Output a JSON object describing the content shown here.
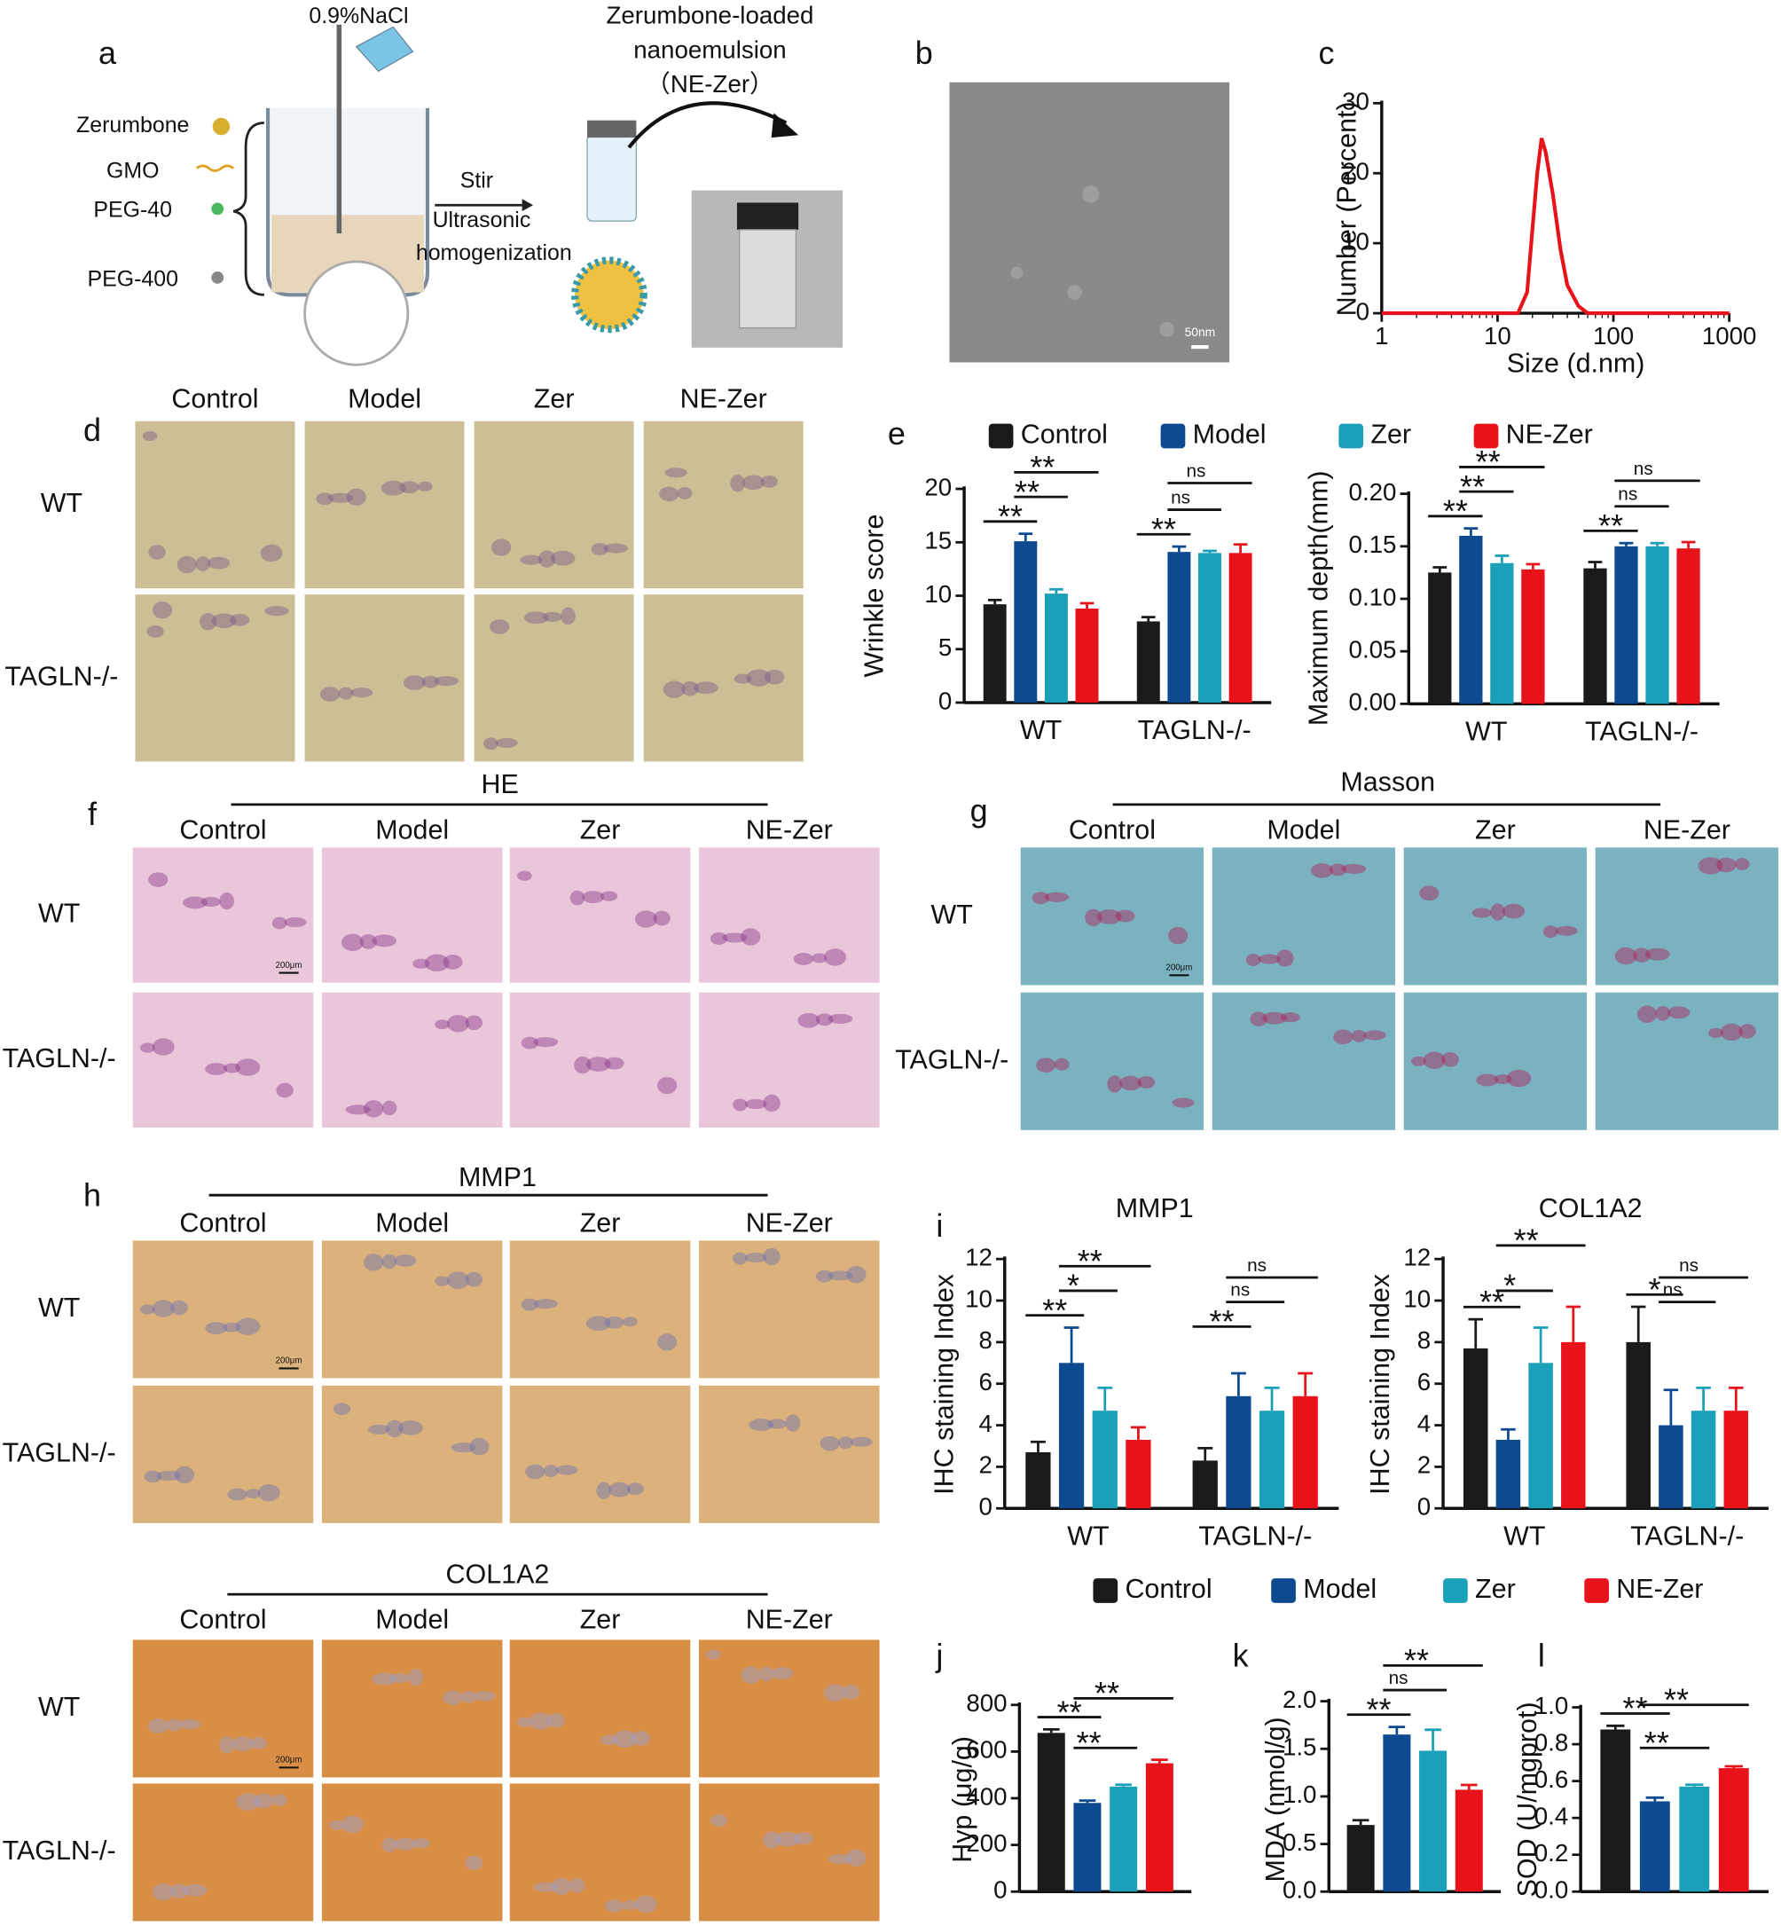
{
  "schematic": {
    "label": "a",
    "nacl": "0.9%NaCl",
    "product_title": [
      "Zerumbone-loaded",
      "nanoemulsion",
      "（NE-Zer）"
    ],
    "ingredients": [
      "Zerumbone",
      "GMO",
      "PEG-40",
      "PEG-400"
    ],
    "steps": [
      "Stir",
      "Ultrasonic",
      "homogenization"
    ]
  },
  "tem": {
    "label": "b",
    "scale_bar": "50nm"
  },
  "image_panels": [
    {
      "label": "d",
      "columns": [
        "Control",
        "Model",
        "Zer",
        "NE-Zer"
      ],
      "rows": [
        "WT",
        "TAGLN-/-"
      ]
    },
    {
      "label": "f",
      "title": "HE",
      "columns": [
        "Control",
        "Model",
        "Zer",
        "NE-Zer"
      ],
      "rows": [
        "WT",
        "TAGLN-/-"
      ],
      "scale_bar": "200μm"
    },
    {
      "label": "g",
      "title": "Masson",
      "columns": [
        "Control",
        "Model",
        "Zer",
        "NE-Zer"
      ],
      "rows": [
        "WT",
        "TAGLN-/-"
      ],
      "scale_bar": "200μm"
    },
    {
      "label": "h",
      "title": "MMP1",
      "columns": [
        "Control",
        "Model",
        "Zer",
        "NE-Zer"
      ],
      "rows": [
        "WT",
        "TAGLN-/-"
      ],
      "scale_bar": "200μm"
    },
    {
      "title": "COL1A2",
      "columns": [
        "Control",
        "Model",
        "Zer",
        "NE-Zer"
      ],
      "rows": [
        "WT",
        "TAGLN-/-"
      ],
      "scale_bar": "200μm"
    }
  ],
  "chart_data": [
    {
      "type": "line",
      "panel": "c",
      "xlabel": "Size (d.nm)",
      "ylabel": "Number (Percent)",
      "log_x": true,
      "x": [
        1,
        15,
        18,
        20,
        22,
        24,
        26,
        30,
        35,
        40,
        50,
        60,
        100,
        1000
      ],
      "series": [
        {
          "color": "#e8121a",
          "values": [
            0,
            0,
            3,
            12,
            20,
            25,
            23,
            17,
            9,
            4,
            1,
            0,
            0,
            0
          ]
        }
      ],
      "xlim": [
        1,
        1000
      ],
      "xticks": [
        1,
        10,
        100,
        1000
      ],
      "ylim": [
        0,
        30
      ],
      "yticks": [
        0,
        10,
        20,
        30
      ]
    },
    {
      "type": "bar",
      "panel": "e",
      "ylabel": "Wrinkle score",
      "legend": "top",
      "categories": [
        "WT",
        "TAGLN-/-"
      ],
      "series": [
        {
          "name": "Control",
          "color": "#1a1a1a",
          "values": [
            9.2,
            7.6
          ],
          "errors": [
            0.4,
            0.4
          ]
        },
        {
          "name": "Model",
          "color": "#0d4a8f",
          "values": [
            15.1,
            14.1
          ],
          "errors": [
            0.7,
            0.5
          ]
        },
        {
          "name": "Zer",
          "color": "#1aa0b8",
          "values": [
            10.2,
            14.0
          ],
          "errors": [
            0.4,
            0.2
          ]
        },
        {
          "name": "NE-Zer",
          "color": "#e8121a",
          "values": [
            8.8,
            14.0
          ],
          "errors": [
            0.5,
            0.8
          ]
        }
      ],
      "ylim": [
        0,
        20
      ],
      "yticks": [
        0,
        5,
        10,
        15,
        20
      ],
      "significance": [
        {
          "label": "**",
          "group": 0,
          "from": 0,
          "to": 1
        },
        {
          "label": "**",
          "group": 0,
          "from": 1,
          "to": 2
        },
        {
          "label": "**",
          "group": 0,
          "from": 1,
          "to": 3
        },
        {
          "label": "**",
          "group": 1,
          "from": 0,
          "to": 1
        },
        {
          "label": "ns",
          "group": 1,
          "from": 1,
          "to": 2
        },
        {
          "label": "ns",
          "group": 1,
          "from": 1,
          "to": 3
        }
      ]
    },
    {
      "type": "bar",
      "ylabel": "Maximum depth(mm)",
      "categories": [
        "WT",
        "TAGLN-/-"
      ],
      "series": [
        {
          "color": "#1a1a1a",
          "values": [
            0.125,
            0.129
          ],
          "errors": [
            0.005,
            0.006
          ]
        },
        {
          "color": "#0d4a8f",
          "values": [
            0.16,
            0.15
          ],
          "errors": [
            0.007,
            0.003
          ]
        },
        {
          "color": "#1aa0b8",
          "values": [
            0.134,
            0.15
          ],
          "errors": [
            0.007,
            0.003
          ]
        },
        {
          "color": "#e8121a",
          "values": [
            0.128,
            0.148
          ],
          "errors": [
            0.005,
            0.006
          ]
        }
      ],
      "ylim": [
        0,
        0.2
      ],
      "yticks": [
        {
          "value": 0,
          "label": "0.00"
        },
        {
          "value": 0.05,
          "label": "0.05"
        },
        {
          "value": 0.1,
          "label": "0.10"
        },
        {
          "value": 0.15,
          "label": "0.15"
        },
        {
          "value": 0.2,
          "label": "0.20"
        }
      ],
      "significance": [
        {
          "label": "**",
          "group": 0,
          "from": 0,
          "to": 1
        },
        {
          "label": "**",
          "group": 0,
          "from": 1,
          "to": 2
        },
        {
          "label": "**",
          "group": 0,
          "from": 1,
          "to": 3
        },
        {
          "label": "**",
          "group": 1,
          "from": 0,
          "to": 1
        },
        {
          "label": "ns",
          "group": 1,
          "from": 1,
          "to": 2
        },
        {
          "label": "ns",
          "group": 1,
          "from": 1,
          "to": 3
        }
      ]
    },
    {
      "type": "bar",
      "panel": "i",
      "title": "MMP1",
      "ylabel": "IHC staining Index",
      "categories": [
        "WT",
        "TAGLN-/-"
      ],
      "series": [
        {
          "color": "#1a1a1a",
          "values": [
            2.7,
            2.3
          ],
          "errors": [
            0.5,
            0.6
          ]
        },
        {
          "color": "#0d4a8f",
          "values": [
            7.0,
            5.4
          ],
          "errors": [
            1.7,
            1.1
          ]
        },
        {
          "color": "#1aa0b8",
          "values": [
            4.7,
            4.7
          ],
          "errors": [
            1.1,
            1.1
          ]
        },
        {
          "color": "#e8121a",
          "values": [
            3.3,
            5.4
          ],
          "errors": [
            0.6,
            1.1
          ]
        }
      ],
      "ylim": [
        0,
        12
      ],
      "yticks": [
        0,
        2,
        4,
        6,
        8,
        10,
        12
      ],
      "significance": [
        {
          "label": "**",
          "group": 0,
          "from": 0,
          "to": 1
        },
        {
          "label": "*",
          "group": 0,
          "from": 1,
          "to": 2
        },
        {
          "label": "**",
          "group": 0,
          "from": 1,
          "to": 3
        },
        {
          "label": "**",
          "group": 1,
          "from": 0,
          "to": 1
        },
        {
          "label": "ns",
          "group": 1,
          "from": 1,
          "to": 2
        },
        {
          "label": "ns",
          "group": 1,
          "from": 1,
          "to": 3
        }
      ]
    },
    {
      "type": "bar",
      "title": "COL1A2",
      "ylabel": "IHC staining Index",
      "categories": [
        "WT",
        "TAGLN-/-"
      ],
      "series": [
        {
          "color": "#1a1a1a",
          "values": [
            7.7,
            8.0
          ],
          "errors": [
            1.4,
            1.7
          ]
        },
        {
          "color": "#0d4a8f",
          "values": [
            3.3,
            4.0
          ],
          "errors": [
            0.5,
            1.7
          ]
        },
        {
          "color": "#1aa0b8",
          "values": [
            7.0,
            4.7
          ],
          "errors": [
            1.7,
            1.1
          ]
        },
        {
          "color": "#e8121a",
          "values": [
            8.0,
            4.7
          ],
          "errors": [
            1.7,
            1.1
          ]
        }
      ],
      "ylim": [
        0,
        12
      ],
      "yticks": [
        0,
        2,
        4,
        6,
        8,
        10,
        12
      ],
      "significance": [
        {
          "label": "**",
          "group": 0,
          "from": 0,
          "to": 1
        },
        {
          "label": "*",
          "group": 0,
          "from": 1,
          "to": 2
        },
        {
          "label": "**",
          "group": 0,
          "from": 1,
          "to": 3
        },
        {
          "label": "*",
          "group": 1,
          "from": 0,
          "to": 1
        },
        {
          "label": "ns",
          "group": 1,
          "from": 1,
          "to": 2
        },
        {
          "label": "ns",
          "group": 1,
          "from": 1,
          "to": 3
        }
      ]
    },
    {
      "type": "bar",
      "panel": "j",
      "ylabel": "Hyp (μg/g)",
      "legend": "top",
      "categories": [
        null
      ],
      "series": [
        {
          "name": "Control",
          "color": "#1a1a1a",
          "values": [
            680
          ],
          "errors": [
            15
          ]
        },
        {
          "name": "Model",
          "color": "#0d4a8f",
          "values": [
            380
          ],
          "errors": [
            10
          ]
        },
        {
          "name": "Zer",
          "color": "#1aa0b8",
          "values": [
            450
          ],
          "errors": [
            8
          ]
        },
        {
          "name": "NE-Zer",
          "color": "#e8121a",
          "values": [
            550
          ],
          "errors": [
            15
          ]
        }
      ],
      "ylim": [
        0,
        800
      ],
      "yticks": [
        0,
        200,
        400,
        600,
        800
      ],
      "significance": [
        {
          "label": "**",
          "group": 0,
          "from": 0,
          "to": 1
        },
        {
          "label": "**",
          "group": 0,
          "from": 1,
          "to": 2
        },
        {
          "label": "**",
          "group": 0,
          "from": 1,
          "to": 3
        }
      ]
    },
    {
      "type": "bar",
      "panel": "k",
      "ylabel": "MDA (nmol/g)",
      "categories": [
        null
      ],
      "series": [
        {
          "color": "#1a1a1a",
          "values": [
            0.7
          ],
          "errors": [
            0.05
          ]
        },
        {
          "color": "#0d4a8f",
          "values": [
            1.65
          ],
          "errors": [
            0.08
          ]
        },
        {
          "color": "#1aa0b8",
          "values": [
            1.48
          ],
          "errors": [
            0.22
          ]
        },
        {
          "color": "#e8121a",
          "values": [
            1.07
          ],
          "errors": [
            0.05
          ]
        }
      ],
      "ylim": [
        0,
        2
      ],
      "yticks": [
        {
          "value": 0,
          "label": "0.0"
        },
        0.5,
        {
          "value": 1,
          "label": "1.0"
        },
        1.5,
        {
          "value": 2,
          "label": "2.0"
        }
      ],
      "significance": [
        {
          "label": "**",
          "group": 0,
          "from": 0,
          "to": 1
        },
        {
          "label": "ns",
          "group": 0,
          "from": 1,
          "to": 2
        },
        {
          "label": "**",
          "group": 0,
          "from": 1,
          "to": 3
        }
      ]
    },
    {
      "type": "bar",
      "panel": "l",
      "ylabel": "SOD (U/mgprot)",
      "categories": [
        null
      ],
      "series": [
        {
          "color": "#1a1a1a",
          "values": [
            0.88
          ],
          "errors": [
            0.02
          ]
        },
        {
          "color": "#0d4a8f",
          "values": [
            0.49
          ],
          "errors": [
            0.02
          ]
        },
        {
          "color": "#1aa0b8",
          "values": [
            0.57
          ],
          "errors": [
            0.01
          ]
        },
        {
          "color": "#e8121a",
          "values": [
            0.67
          ],
          "errors": [
            0.01
          ]
        }
      ],
      "ylim": [
        0,
        1
      ],
      "yticks": [
        {
          "value": 0,
          "label": "0.0"
        },
        0.2,
        0.4,
        0.6,
        0.8,
        {
          "value": 1,
          "label": "1.0"
        }
      ],
      "significance": [
        {
          "label": "**",
          "group": 0,
          "from": 0,
          "to": 1
        },
        {
          "label": "**",
          "group": 0,
          "from": 1,
          "to": 2
        },
        {
          "label": "**",
          "group": 0,
          "from": 1,
          "to": 3
        }
      ]
    }
  ]
}
